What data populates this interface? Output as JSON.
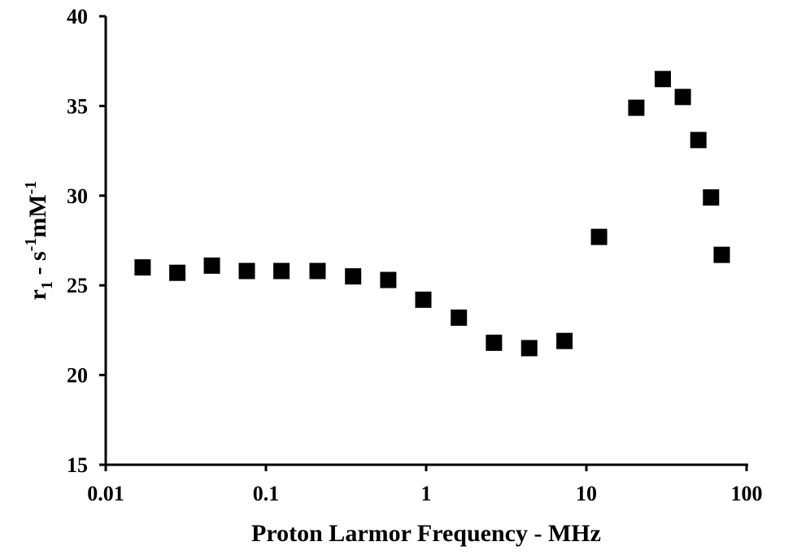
{
  "chart_data": {
    "type": "scatter",
    "title": "",
    "xlabel": "Proton Larmor Frequency - MHz",
    "ylabel_main": "r",
    "ylabel_sub": "1",
    "ylabel_rest_a": " - s",
    "ylabel_sup_a": "-1",
    "ylabel_rest_b": "mM",
    "ylabel_sup_b": "-1",
    "x_scale": "log",
    "xlim": [
      0.01,
      100
    ],
    "ylim": [
      15,
      40
    ],
    "x_ticks": [
      0.01,
      0.1,
      1,
      10,
      100
    ],
    "x_tick_labels": [
      "0.01",
      "0.1",
      "1",
      "10",
      "100"
    ],
    "y_ticks": [
      15,
      20,
      25,
      30,
      35,
      40
    ],
    "y_tick_labels": [
      "15",
      "20",
      "25",
      "30",
      "35",
      "40"
    ],
    "grid": false,
    "legend": "none",
    "marker": "square",
    "marker_color": "#000000",
    "points": [
      {
        "x": 0.017,
        "y": 26.0
      },
      {
        "x": 0.028,
        "y": 25.7
      },
      {
        "x": 0.046,
        "y": 26.1
      },
      {
        "x": 0.076,
        "y": 25.8
      },
      {
        "x": 0.125,
        "y": 25.8
      },
      {
        "x": 0.21,
        "y": 25.8
      },
      {
        "x": 0.35,
        "y": 25.5
      },
      {
        "x": 0.58,
        "y": 25.3
      },
      {
        "x": 0.96,
        "y": 24.2
      },
      {
        "x": 1.6,
        "y": 23.2
      },
      {
        "x": 2.65,
        "y": 21.8
      },
      {
        "x": 4.4,
        "y": 21.5
      },
      {
        "x": 7.3,
        "y": 21.9
      },
      {
        "x": 12.0,
        "y": 27.7
      },
      {
        "x": 20.5,
        "y": 34.9
      },
      {
        "x": 30.0,
        "y": 36.5
      },
      {
        "x": 40.0,
        "y": 35.5
      },
      {
        "x": 50.0,
        "y": 33.1
      },
      {
        "x": 60.0,
        "y": 29.9
      },
      {
        "x": 70.0,
        "y": 26.7
      }
    ]
  }
}
